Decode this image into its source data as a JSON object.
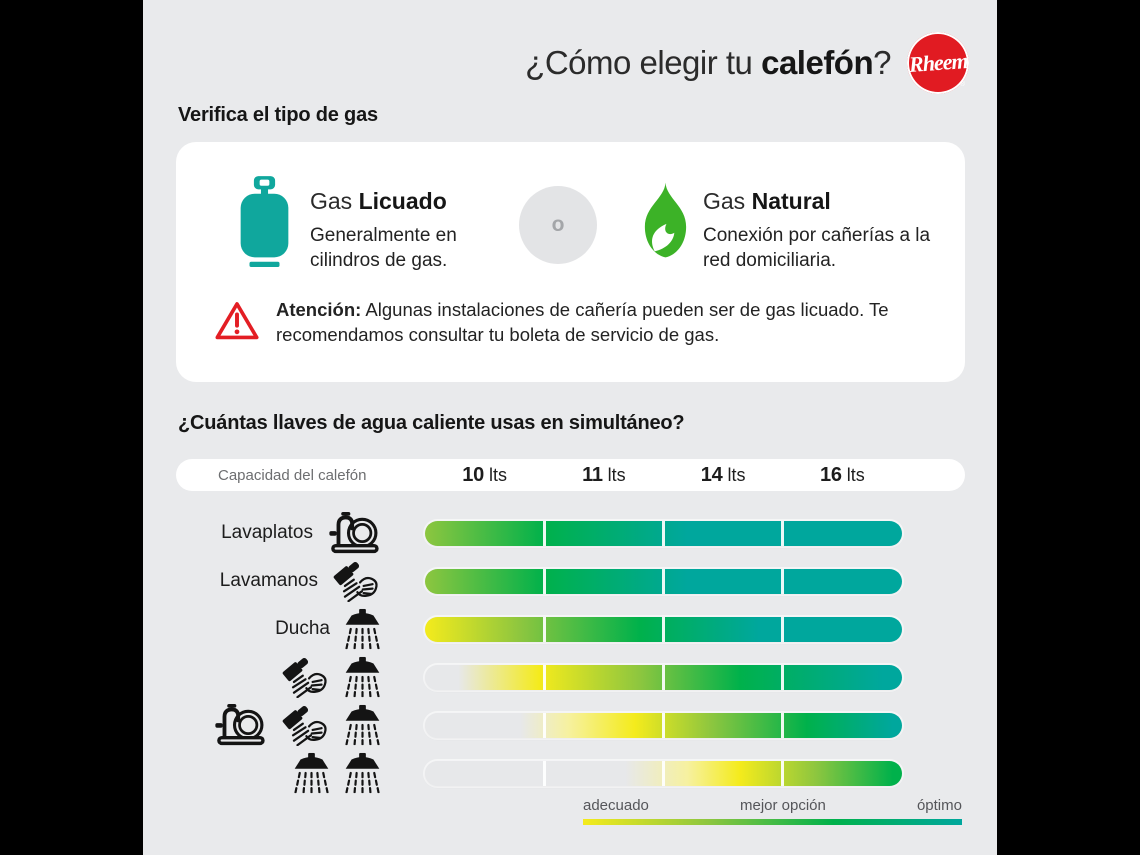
{
  "header": {
    "title_prefix": "¿Cómo elegir tu ",
    "title_bold": "calefón",
    "title_suffix": "?",
    "brand": "Rheem",
    "brand_registered": "®",
    "brand_color": "#E11B22"
  },
  "gas_section": {
    "heading": "Verifica el tipo de gas",
    "or_label": "o",
    "options": [
      {
        "icon": "gas-cylinder-icon",
        "name_prefix": "Gas ",
        "name_bold": "Licuado",
        "description": "Generalmente en cilindros de gas.",
        "icon_color": "#10A79D"
      },
      {
        "icon": "flame-icon",
        "name_prefix": "Gas ",
        "name_bold": "Natural",
        "description": "Conexión por cañerías a la red domiciliaria.",
        "icon_color": "#3CB227"
      }
    ],
    "warning_bold": "Atención:",
    "warning_text": " Algunas instalaciones de cañería pueden ser de gas licuado. Te recomendamos consultar tu boleta de servicio de gas.",
    "warning_color": "#E31E24"
  },
  "chart_data": {
    "type": "heatmap",
    "title": "¿Cuántas llaves de agua caliente usas en simultáneo?",
    "capacity_label": "Capacidad del calefón",
    "columns": [
      {
        "value": "10",
        "unit": "lts"
      },
      {
        "value": "11",
        "unit": "lts"
      },
      {
        "value": "14",
        "unit": "lts"
      },
      {
        "value": "16",
        "unit": "lts"
      }
    ],
    "color_scale": {
      "adecuado": "#F4EB1C",
      "mejor opción": "#00B14B",
      "óptimo": "#00A79D",
      "no adecuado": "#E7E8EA"
    },
    "rows": [
      {
        "label": "Lavaplatos",
        "icons": [
          "lavaplatos"
        ],
        "assessment_by_column": [
          "mejor opción",
          "mejor opción",
          "óptimo",
          "óptimo"
        ],
        "gradient": [
          [
            "#8DC63F",
            0
          ],
          [
            "#00B14B",
            25
          ],
          [
            "#00A79D",
            55
          ],
          [
            "#00A79D",
            100
          ]
        ]
      },
      {
        "label": "Lavamanos",
        "icons": [
          "lavamanos"
        ],
        "assessment_by_column": [
          "mejor opción",
          "mejor opción",
          "óptimo",
          "óptimo"
        ],
        "gradient": [
          [
            "#8DC63F",
            0
          ],
          [
            "#00B14B",
            25
          ],
          [
            "#00A79D",
            55
          ],
          [
            "#00A79D",
            100
          ]
        ]
      },
      {
        "label": "Ducha",
        "icons": [
          "ducha"
        ],
        "assessment_by_column": [
          "adecuado",
          "mejor opción",
          "óptimo",
          "óptimo"
        ],
        "gradient": [
          [
            "#F4EB1C",
            0
          ],
          [
            "#8DC63F",
            20
          ],
          [
            "#00B14B",
            45
          ],
          [
            "#00A79D",
            70
          ],
          [
            "#00A79D",
            100
          ]
        ]
      },
      {
        "label": "",
        "icons": [
          "lavamanos",
          "ducha"
        ],
        "assessment_by_column": [
          "adecuado",
          "adecuado",
          "mejor opción",
          "óptimo"
        ],
        "gradient": [
          [
            "#E7E8EA",
            0
          ],
          [
            "#E7E8EA",
            7
          ],
          [
            "#F4EB1C",
            24
          ],
          [
            "#8DC63F",
            45
          ],
          [
            "#00B14B",
            66
          ],
          [
            "#00A79D",
            96
          ],
          [
            "#00A79D",
            100
          ]
        ]
      },
      {
        "label": "",
        "icons": [
          "lavaplatos",
          "lavamanos",
          "ducha"
        ],
        "assessment_by_column": [
          "no adecuado",
          "adecuado",
          "mejor opción",
          "óptimo"
        ],
        "gradient": [
          [
            "#E7E8EA",
            0
          ],
          [
            "#E7E8EA",
            20
          ],
          [
            "#F6F1A0",
            30
          ],
          [
            "#F4EB1C",
            44
          ],
          [
            "#8DC63F",
            60
          ],
          [
            "#00B14B",
            80
          ],
          [
            "#00A79D",
            98
          ],
          [
            "#00A79D",
            100
          ]
        ]
      },
      {
        "label": "",
        "icons": [
          "ducha",
          "ducha"
        ],
        "assessment_by_column": [
          "no adecuado",
          "adecuado",
          "adecuado",
          "mejor opción"
        ],
        "gradient": [
          [
            "#E7E8EA",
            0
          ],
          [
            "#E7E8EA",
            42
          ],
          [
            "#F6F1A0",
            55
          ],
          [
            "#F4EB1C",
            66
          ],
          [
            "#8DC63F",
            82
          ],
          [
            "#00B14B",
            98
          ],
          [
            "#00B14B",
            100
          ]
        ]
      }
    ],
    "legend": {
      "labels": [
        "adecuado",
        "mejor opción",
        "óptimo"
      ],
      "gradient": [
        [
          "#F4EB1C",
          0
        ],
        [
          "#8DC63F",
          33
        ],
        [
          "#00B14B",
          66
        ],
        [
          "#00A79D",
          100
        ]
      ]
    },
    "layout": {
      "grid": false,
      "legend_position": "bottom-right",
      "columns_separated_by_white_gaps": true
    }
  }
}
